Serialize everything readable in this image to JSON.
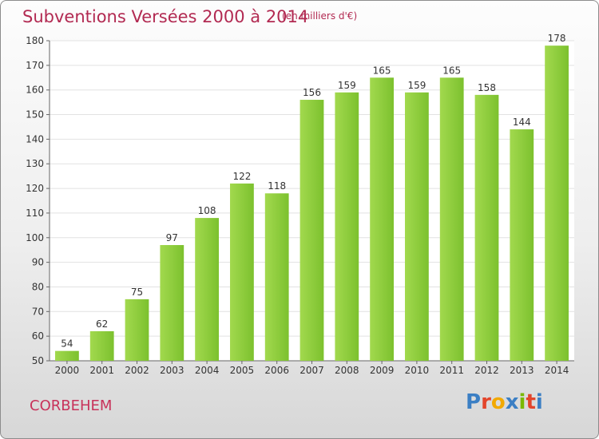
{
  "header": {
    "title": "Subventions Versées 2000 à 2014",
    "subtitle": "(en milliers d'€)"
  },
  "footer": {
    "place": "CORBEHEM",
    "brand_letters": [
      "P",
      "r",
      "o",
      "x",
      "i",
      "t",
      "i"
    ],
    "brand_colors": [
      "#3b7fc4",
      "#e3452b",
      "#f2a900",
      "#3b7fc4",
      "#7ab800",
      "#e3452b",
      "#3b7fc4"
    ]
  },
  "chart_data": {
    "type": "bar",
    "title": "Subventions Versées 2000 à 2014",
    "subtitle": "(en milliers d'€)",
    "categories": [
      "2000",
      "2001",
      "2002",
      "2003",
      "2004",
      "2005",
      "2006",
      "2007",
      "2008",
      "2009",
      "2010",
      "2011",
      "2012",
      "2013",
      "2014"
    ],
    "values": [
      54,
      62,
      75,
      97,
      108,
      122,
      118,
      156,
      159,
      165,
      159,
      165,
      158,
      144,
      178
    ],
    "ylim": [
      50,
      180
    ],
    "yticks": [
      50,
      60,
      70,
      80,
      90,
      100,
      110,
      120,
      130,
      140,
      150,
      160,
      170,
      180
    ],
    "grid": true,
    "legend": "none",
    "bar_color": "#7cc12e",
    "bar_color_light": "#a2d94e"
  }
}
